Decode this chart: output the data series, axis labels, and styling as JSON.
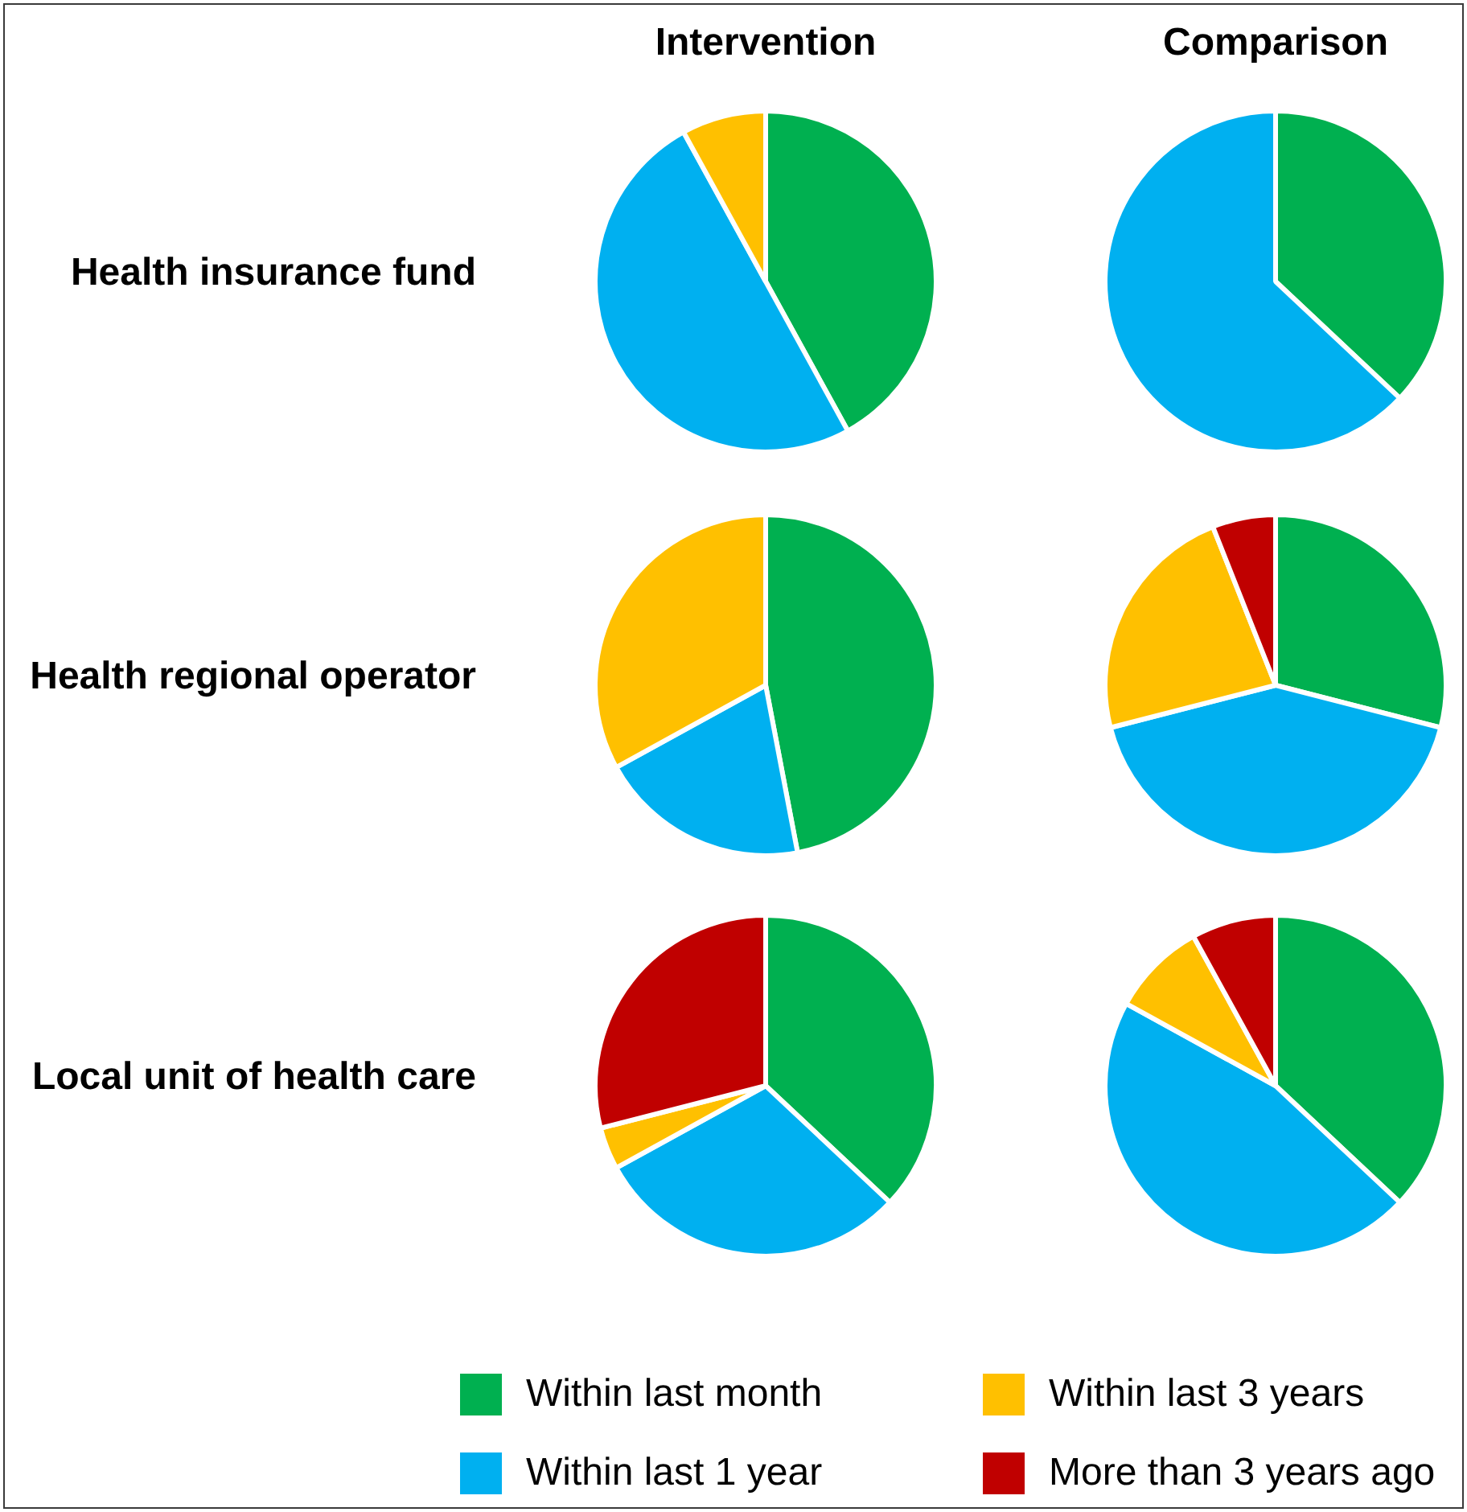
{
  "chart_data": [
    {
      "type": "pie",
      "title": "Intervention",
      "ylabel": "Health insurance fund",
      "categories": [
        "Within last month",
        "Within last 1 year",
        "Within last 3 years",
        "More than 3 years ago"
      ],
      "values": [
        42,
        50,
        8,
        0
      ],
      "colors": [
        "#00b050",
        "#00b0f0",
        "#ffc000",
        "#c00000"
      ],
      "legend": "bottom"
    },
    {
      "type": "pie",
      "title": "Comparison",
      "categories": [
        null,
        null
      ],
      "values": [
        37,
        63
      ],
      "colors": [
        "#00b050",
        "#00b0f0"
      ]
    },
    {
      "type": "pie",
      "ylabel": "Health regional operator",
      "categories": [
        null,
        null,
        null
      ],
      "values": [
        47,
        20,
        33
      ],
      "colors": [
        "#00b050",
        "#00b0f0",
        "#ffc000"
      ]
    },
    {
      "type": "pie",
      "categories": [
        null,
        null,
        null,
        null
      ],
      "values": [
        29,
        42,
        23,
        6
      ],
      "colors": [
        "#00b050",
        "#00b0f0",
        "#ffc000",
        "#c00000"
      ]
    },
    {
      "type": "pie",
      "ylabel": "Local unit of health care",
      "categories": [
        null,
        null,
        null,
        null
      ],
      "values": [
        37,
        30,
        4,
        29
      ],
      "colors": [
        "#00b050",
        "#00b0f0",
        "#ffc000",
        "#c00000"
      ]
    },
    {
      "type": "pie",
      "categories": [
        null,
        null,
        null,
        null
      ],
      "values": [
        37,
        46,
        9,
        8
      ],
      "colors": [
        "#00b050",
        "#00b0f0",
        "#ffc000",
        "#c00000"
      ]
    }
  ]
}
